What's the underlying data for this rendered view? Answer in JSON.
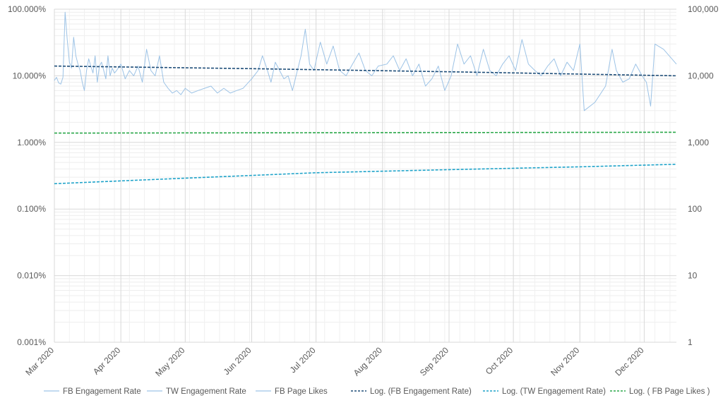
{
  "chart_data": {
    "type": "line",
    "title": "",
    "x_start": "2020-03-01",
    "x_end": "2020-12-16",
    "x_ticks": [
      {
        "date": "2020-03-01",
        "label": "Mar 2020"
      },
      {
        "date": "2020-04-01",
        "label": "Apr 2020"
      },
      {
        "date": "2020-05-01",
        "label": "May 2020"
      },
      {
        "date": "2020-06-01",
        "label": "Jun 2020"
      },
      {
        "date": "2020-07-01",
        "label": "Jul 2020"
      },
      {
        "date": "2020-08-01",
        "label": "Aug 2020"
      },
      {
        "date": "2020-09-01",
        "label": "Sep 2020"
      },
      {
        "date": "2020-10-01",
        "label": "Oct 2020"
      },
      {
        "date": "2020-11-01",
        "label": "Nov 2020"
      },
      {
        "date": "2020-12-01",
        "label": "Dec 2020"
      }
    ],
    "y_left": {
      "scale": "log",
      "range": [
        1e-05,
        1
      ],
      "ticks": [
        {
          "value": 1,
          "label": "100.000%"
        },
        {
          "value": 0.1,
          "label": "10.000%"
        },
        {
          "value": 0.01,
          "label": "1.000%"
        },
        {
          "value": 0.001,
          "label": "0.100%"
        },
        {
          "value": 0.0001,
          "label": "0.010%"
        },
        {
          "value": 1e-05,
          "label": "0.001%"
        }
      ]
    },
    "y_right": {
      "scale": "log",
      "range": [
        1,
        100000
      ],
      "ticks": [
        {
          "value": 100000,
          "label": "100,000"
        },
        {
          "value": 10000,
          "label": "10,000"
        },
        {
          "value": 1000,
          "label": "1,000"
        },
        {
          "value": 100,
          "label": "100"
        },
        {
          "value": 10,
          "label": "10"
        },
        {
          "value": 1,
          "label": "1"
        }
      ]
    },
    "grid": true,
    "legend_position": "bottom",
    "series": [
      {
        "name": "FB Engagement Rate",
        "axis": "left",
        "style": "solid",
        "color": "#9DC3E6",
        "points": [
          [
            "2020-03-01",
            0.085
          ],
          [
            "2020-03-02",
            0.095
          ],
          [
            "2020-03-03",
            0.078
          ],
          [
            "2020-03-04",
            0.075
          ],
          [
            "2020-03-05",
            0.095
          ],
          [
            "2020-03-06",
            0.9
          ],
          [
            "2020-03-07",
            0.35
          ],
          [
            "2020-03-08",
            0.16
          ],
          [
            "2020-03-09",
            0.13
          ],
          [
            "2020-03-10",
            0.38
          ],
          [
            "2020-03-11",
            0.2
          ],
          [
            "2020-03-12",
            0.15
          ],
          [
            "2020-03-13",
            0.12
          ],
          [
            "2020-03-14",
            0.08
          ],
          [
            "2020-03-15",
            0.06
          ],
          [
            "2020-03-16",
            0.12
          ],
          [
            "2020-03-17",
            0.18
          ],
          [
            "2020-03-18",
            0.14
          ],
          [
            "2020-03-19",
            0.11
          ],
          [
            "2020-03-20",
            0.2
          ],
          [
            "2020-03-21",
            0.08
          ],
          [
            "2020-03-22",
            0.14
          ],
          [
            "2020-03-23",
            0.16
          ],
          [
            "2020-03-24",
            0.12
          ],
          [
            "2020-03-25",
            0.09
          ],
          [
            "2020-03-26",
            0.2
          ],
          [
            "2020-03-27",
            0.1
          ],
          [
            "2020-03-28",
            0.13
          ],
          [
            "2020-03-29",
            0.11
          ],
          [
            "2020-03-30",
            0.12
          ],
          [
            "2020-04-01",
            0.15
          ],
          [
            "2020-04-03",
            0.09
          ],
          [
            "2020-04-05",
            0.12
          ],
          [
            "2020-04-07",
            0.1
          ],
          [
            "2020-04-09",
            0.14
          ],
          [
            "2020-04-11",
            0.08
          ],
          [
            "2020-04-13",
            0.25
          ],
          [
            "2020-04-15",
            0.12
          ],
          [
            "2020-04-17",
            0.1
          ],
          [
            "2020-04-19",
            0.2
          ],
          [
            "2020-04-21",
            0.08
          ],
          [
            "2020-04-23",
            0.065
          ],
          [
            "2020-04-25",
            0.055
          ],
          [
            "2020-04-27",
            0.06
          ],
          [
            "2020-04-29",
            0.052
          ],
          [
            "2020-05-01",
            0.065
          ],
          [
            "2020-05-04",
            0.055
          ],
          [
            "2020-05-07",
            0.06
          ],
          [
            "2020-05-10",
            0.065
          ],
          [
            "2020-05-13",
            0.07
          ],
          [
            "2020-05-16",
            0.055
          ],
          [
            "2020-05-19",
            0.065
          ],
          [
            "2020-05-22",
            0.055
          ],
          [
            "2020-05-25",
            0.06
          ],
          [
            "2020-05-28",
            0.065
          ],
          [
            "2020-06-01",
            0.09
          ],
          [
            "2020-06-04",
            0.12
          ],
          [
            "2020-06-06",
            0.2
          ],
          [
            "2020-06-08",
            0.13
          ],
          [
            "2020-06-10",
            0.08
          ],
          [
            "2020-06-12",
            0.16
          ],
          [
            "2020-06-14",
            0.12
          ],
          [
            "2020-06-16",
            0.09
          ],
          [
            "2020-06-18",
            0.1
          ],
          [
            "2020-06-20",
            0.06
          ],
          [
            "2020-06-22",
            0.11
          ],
          [
            "2020-06-24",
            0.2
          ],
          [
            "2020-06-26",
            0.5
          ],
          [
            "2020-06-28",
            0.15
          ],
          [
            "2020-06-30",
            0.12
          ],
          [
            "2020-07-03",
            0.32
          ],
          [
            "2020-07-06",
            0.15
          ],
          [
            "2020-07-09",
            0.28
          ],
          [
            "2020-07-12",
            0.12
          ],
          [
            "2020-07-15",
            0.1
          ],
          [
            "2020-07-18",
            0.15
          ],
          [
            "2020-07-21",
            0.22
          ],
          [
            "2020-07-24",
            0.12
          ],
          [
            "2020-07-27",
            0.1
          ],
          [
            "2020-07-30",
            0.14
          ],
          [
            "2020-08-03",
            0.15
          ],
          [
            "2020-08-06",
            0.2
          ],
          [
            "2020-08-09",
            0.12
          ],
          [
            "2020-08-12",
            0.18
          ],
          [
            "2020-08-15",
            0.1
          ],
          [
            "2020-08-18",
            0.15
          ],
          [
            "2020-08-21",
            0.07
          ],
          [
            "2020-08-24",
            0.09
          ],
          [
            "2020-08-27",
            0.14
          ],
          [
            "2020-08-30",
            0.06
          ],
          [
            "2020-09-02",
            0.1
          ],
          [
            "2020-09-05",
            0.3
          ],
          [
            "2020-09-08",
            0.15
          ],
          [
            "2020-09-11",
            0.2
          ],
          [
            "2020-09-14",
            0.1
          ],
          [
            "2020-09-17",
            0.25
          ],
          [
            "2020-09-20",
            0.12
          ],
          [
            "2020-09-23",
            0.1
          ],
          [
            "2020-09-26",
            0.15
          ],
          [
            "2020-09-29",
            0.2
          ],
          [
            "2020-10-02",
            0.12
          ],
          [
            "2020-10-05",
            0.35
          ],
          [
            "2020-10-08",
            0.15
          ],
          [
            "2020-10-11",
            0.12
          ],
          [
            "2020-10-14",
            0.1
          ],
          [
            "2020-10-17",
            0.14
          ],
          [
            "2020-10-20",
            0.18
          ],
          [
            "2020-10-23",
            0.1
          ],
          [
            "2020-10-26",
            0.16
          ],
          [
            "2020-10-29",
            0.12
          ],
          [
            "2020-11-01",
            0.3
          ],
          [
            "2020-11-03",
            0.03
          ],
          [
            "2020-11-08",
            0.04
          ],
          [
            "2020-11-13",
            0.07
          ],
          [
            "2020-11-16",
            0.25
          ],
          [
            "2020-11-18",
            0.12
          ],
          [
            "2020-11-21",
            0.08
          ],
          [
            "2020-11-24",
            0.09
          ],
          [
            "2020-11-27",
            0.15
          ],
          [
            "2020-11-30",
            0.1
          ],
          [
            "2020-12-02",
            0.08
          ],
          [
            "2020-12-04",
            0.035
          ],
          [
            "2020-12-06",
            0.3
          ],
          [
            "2020-12-10",
            0.25
          ],
          [
            "2020-12-16",
            0.15
          ]
        ]
      },
      {
        "name": "TW Engagement Rate",
        "axis": "left",
        "style": "solid",
        "color": "#9DC3E6",
        "points": []
      },
      {
        "name": "FB Page Likes",
        "axis": "right",
        "style": "solid",
        "color": "#9DC3E6",
        "points": []
      },
      {
        "name": "Log. (FB Engagement Rate)",
        "axis": "left",
        "style": "dashed",
        "color": "#1F4E79",
        "points": [
          [
            "2020-03-01",
            0.14
          ],
          [
            "2020-06-01",
            0.128
          ],
          [
            "2020-09-01",
            0.115
          ],
          [
            "2020-12-16",
            0.1
          ]
        ]
      },
      {
        "name": "Log. (TW Engagement Rate)",
        "axis": "left",
        "style": "dashed",
        "color": "#1FA3C9",
        "points": [
          [
            "2020-03-01",
            0.0024
          ],
          [
            "2020-05-01",
            0.0029
          ],
          [
            "2020-07-01",
            0.0035
          ],
          [
            "2020-09-01",
            0.0039
          ],
          [
            "2020-11-01",
            0.0043
          ],
          [
            "2020-12-16",
            0.0047
          ]
        ]
      },
      {
        "name": "Log. ( FB Page Likes )",
        "axis": "right",
        "style": "dashed",
        "color": "#2BA84A",
        "points": [
          [
            "2020-03-01",
            1380
          ],
          [
            "2020-12-16",
            1420
          ]
        ]
      }
    ]
  }
}
